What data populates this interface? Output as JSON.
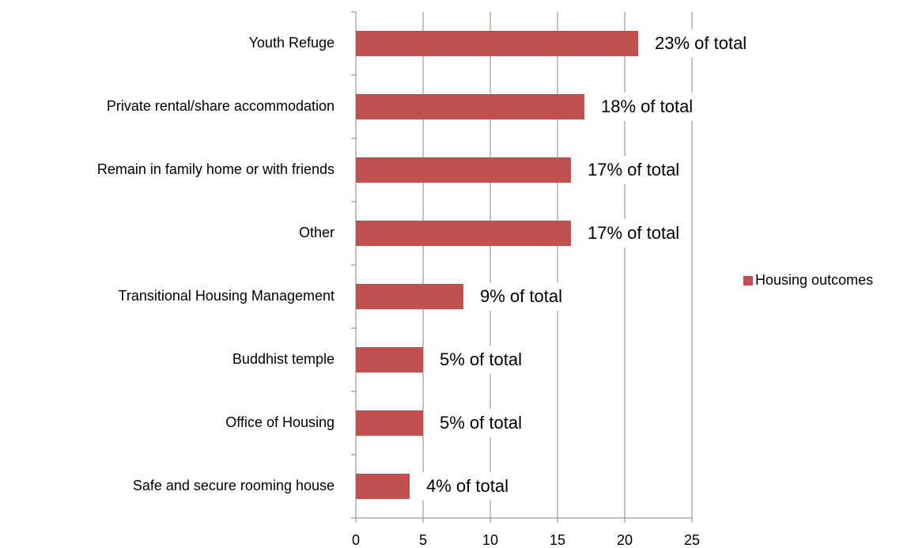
{
  "chart_data": {
    "type": "bar",
    "orientation": "horizontal",
    "categories": [
      "Youth Refuge",
      "Private rental/share accommodation",
      "Remain in family home or with friends",
      "Other",
      "Transitional Housing Management",
      "Buddhist temple",
      "Office of Housing",
      "Safe and secure rooming house"
    ],
    "series": [
      {
        "name": "Housing outcomes",
        "color": "#c0504d",
        "values": [
          21,
          17,
          16,
          16,
          8,
          5,
          5,
          4
        ]
      }
    ],
    "annotations": [
      "23% of total",
      "18% of total",
      "17% of total",
      "17% of total",
      "9% of total",
      "5% of total",
      "5% of total",
      "4% of total"
    ],
    "xlim": [
      0,
      25
    ],
    "xticks": [
      0,
      5,
      10,
      15,
      20,
      25
    ],
    "grid": true,
    "legend": "right"
  }
}
